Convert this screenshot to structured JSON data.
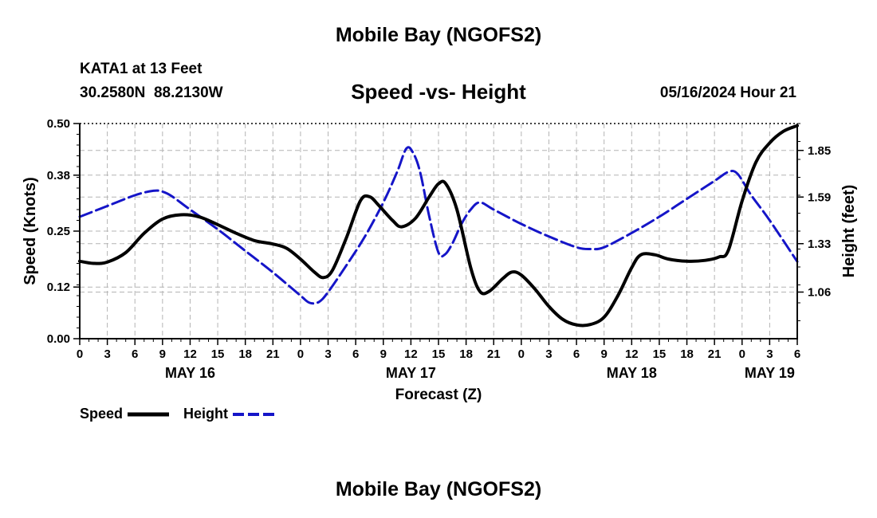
{
  "page": {
    "title": "Mobile Bay (NGOFS2)",
    "station": "KATA1 at 13 Feet",
    "coords": "30.2580N  88.2130W",
    "subtitle": "Speed -vs- Height",
    "date": "05/16/2024 Hour 21",
    "footer_title": "Mobile Bay (NGOFS2)"
  },
  "legend": {
    "speed_label": "Speed",
    "height_label": "Height"
  },
  "colors": {
    "speed": "#000000",
    "height": "#1515c8",
    "grid": "#b4b4b4"
  },
  "chart_data": {
    "type": "line",
    "title": "Speed -vs- Height",
    "xlabel": "Forecast (Z)",
    "ylabel": "Speed (Knots)",
    "y2label": "Height (feet)",
    "grid": true,
    "x_range_hours": [
      0,
      78
    ],
    "xticks": [
      {
        "h": 0,
        "label": "0"
      },
      {
        "h": 3,
        "label": "3"
      },
      {
        "h": 6,
        "label": "6"
      },
      {
        "h": 9,
        "label": "9"
      },
      {
        "h": 12,
        "label": "12"
      },
      {
        "h": 15,
        "label": "15"
      },
      {
        "h": 18,
        "label": "18"
      },
      {
        "h": 21,
        "label": "21"
      },
      {
        "h": 24,
        "label": "0"
      },
      {
        "h": 27,
        "label": "3"
      },
      {
        "h": 30,
        "label": "6"
      },
      {
        "h": 33,
        "label": "9"
      },
      {
        "h": 36,
        "label": "12"
      },
      {
        "h": 39,
        "label": "15"
      },
      {
        "h": 42,
        "label": "18"
      },
      {
        "h": 45,
        "label": "21"
      },
      {
        "h": 48,
        "label": "0"
      },
      {
        "h": 51,
        "label": "3"
      },
      {
        "h": 54,
        "label": "6"
      },
      {
        "h": 57,
        "label": "9"
      },
      {
        "h": 60,
        "label": "12"
      },
      {
        "h": 63,
        "label": "15"
      },
      {
        "h": 66,
        "label": "18"
      },
      {
        "h": 69,
        "label": "21"
      },
      {
        "h": 72,
        "label": "0"
      },
      {
        "h": 75,
        "label": "3"
      },
      {
        "h": 78,
        "label": "6"
      }
    ],
    "date_labels": [
      {
        "h": 12,
        "label": "MAY 16"
      },
      {
        "h": 36,
        "label": "MAY 17"
      },
      {
        "h": 60,
        "label": "MAY 18"
      },
      {
        "h": 75,
        "label": "MAY 19"
      }
    ],
    "y_left": {
      "range": [
        0,
        0.5
      ],
      "ticks": [
        0.0,
        0.12,
        0.25,
        0.38,
        0.5
      ],
      "labels": [
        "0.00",
        "0.12",
        "0.25",
        "0.38",
        "0.50"
      ]
    },
    "y_right": {
      "range": [
        0.8,
        2.0
      ],
      "ticks": [
        1.06,
        1.33,
        1.59,
        1.85
      ],
      "labels": [
        "1.06",
        "1.33",
        "1.59",
        "1.85"
      ]
    },
    "series": [
      {
        "name": "Speed",
        "axis": "left",
        "style": "solid",
        "points": [
          [
            0,
            0.18
          ],
          [
            1.5,
            0.175
          ],
          [
            3,
            0.178
          ],
          [
            5,
            0.2
          ],
          [
            7,
            0.245
          ],
          [
            9,
            0.278
          ],
          [
            11,
            0.288
          ],
          [
            13,
            0.283
          ],
          [
            15,
            0.265
          ],
          [
            17,
            0.245
          ],
          [
            19,
            0.228
          ],
          [
            21,
            0.22
          ],
          [
            22.5,
            0.21
          ],
          [
            24,
            0.185
          ],
          [
            25.5,
            0.155
          ],
          [
            26.5,
            0.142
          ],
          [
            27.5,
            0.16
          ],
          [
            29,
            0.235
          ],
          [
            30.5,
            0.32
          ],
          [
            31.5,
            0.33
          ],
          [
            32.5,
            0.31
          ],
          [
            34,
            0.275
          ],
          [
            35,
            0.26
          ],
          [
            36.5,
            0.28
          ],
          [
            38,
            0.33
          ],
          [
            39,
            0.36
          ],
          [
            39.8,
            0.36
          ],
          [
            41,
            0.3
          ],
          [
            42.5,
            0.165
          ],
          [
            43.5,
            0.11
          ],
          [
            44.5,
            0.11
          ],
          [
            46,
            0.14
          ],
          [
            47,
            0.155
          ],
          [
            48,
            0.148
          ],
          [
            49.5,
            0.115
          ],
          [
            51,
            0.075
          ],
          [
            52.5,
            0.045
          ],
          [
            54,
            0.032
          ],
          [
            55.5,
            0.033
          ],
          [
            57,
            0.05
          ],
          [
            58.5,
            0.1
          ],
          [
            60,
            0.165
          ],
          [
            61,
            0.195
          ],
          [
            62.5,
            0.195
          ],
          [
            64,
            0.185
          ],
          [
            66,
            0.18
          ],
          [
            68,
            0.182
          ],
          [
            69.5,
            0.19
          ],
          [
            70.5,
            0.205
          ],
          [
            72,
            0.32
          ],
          [
            73.5,
            0.41
          ],
          [
            75,
            0.455
          ],
          [
            76.5,
            0.482
          ],
          [
            78,
            0.495
          ]
        ]
      },
      {
        "name": "Height",
        "axis": "right",
        "style": "dashed",
        "points": [
          [
            0,
            1.48
          ],
          [
            3,
            1.54
          ],
          [
            6,
            1.6
          ],
          [
            8,
            1.625
          ],
          [
            9,
            1.62
          ],
          [
            10,
            1.595
          ],
          [
            12,
            1.52
          ],
          [
            15,
            1.41
          ],
          [
            18,
            1.29
          ],
          [
            21,
            1.17
          ],
          [
            24,
            1.04
          ],
          [
            25,
            1.0
          ],
          [
            26,
            1.005
          ],
          [
            27,
            1.06
          ],
          [
            29,
            1.21
          ],
          [
            31,
            1.37
          ],
          [
            33,
            1.56
          ],
          [
            34.5,
            1.73
          ],
          [
            35.5,
            1.86
          ],
          [
            36.2,
            1.84
          ],
          [
            37,
            1.73
          ],
          [
            38,
            1.48
          ],
          [
            39,
            1.28
          ],
          [
            39.7,
            1.27
          ],
          [
            40.5,
            1.33
          ],
          [
            41.5,
            1.44
          ],
          [
            42.5,
            1.52
          ],
          [
            43.5,
            1.56
          ],
          [
            45,
            1.52
          ],
          [
            48,
            1.44
          ],
          [
            51,
            1.37
          ],
          [
            54,
            1.31
          ],
          [
            55.5,
            1.3
          ],
          [
            57,
            1.31
          ],
          [
            60,
            1.39
          ],
          [
            63,
            1.48
          ],
          [
            66,
            1.58
          ],
          [
            69,
            1.68
          ],
          [
            70.5,
            1.73
          ],
          [
            71.5,
            1.72
          ],
          [
            73,
            1.6
          ],
          [
            75,
            1.46
          ],
          [
            78,
            1.23
          ]
        ]
      }
    ]
  }
}
